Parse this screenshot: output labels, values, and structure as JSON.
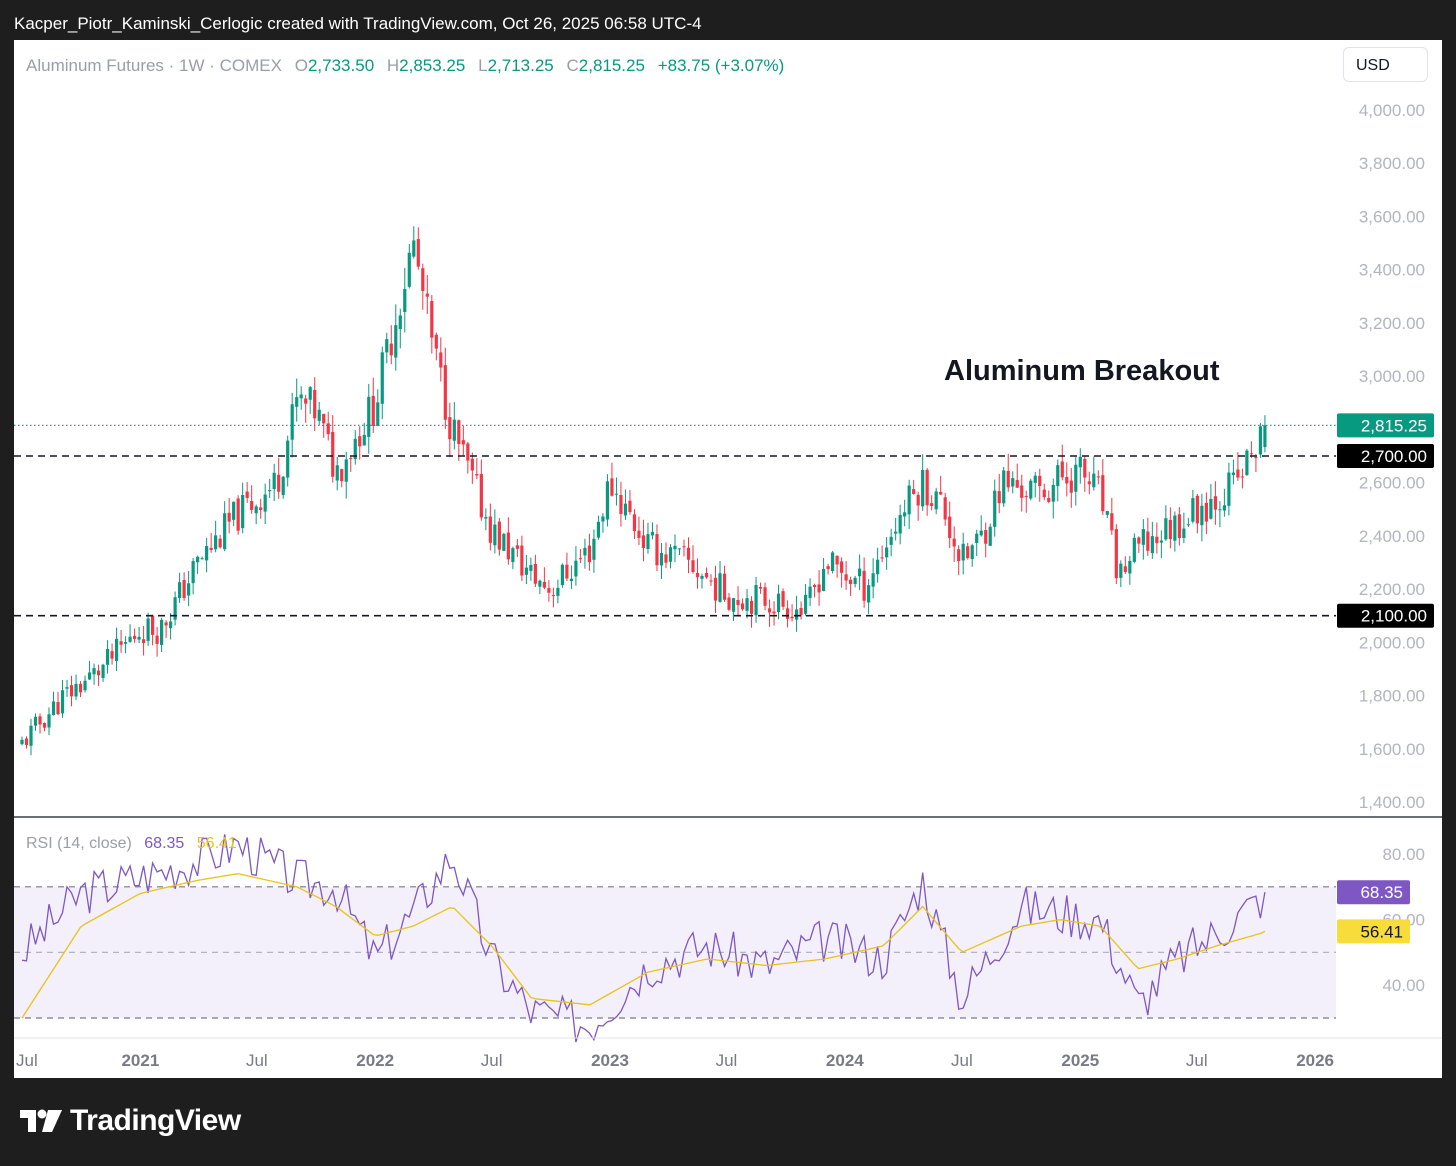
{
  "caption": "Kacper_Piotr_Kaminski_Cerlogic created with TradingView.com, Oct 26, 2025 06:58 UTC-4",
  "header": {
    "symbol": "Aluminum Futures · 1W · COMEX",
    "open_label": "O",
    "open": "2,733.50",
    "high_label": "H",
    "high": "2,853.25",
    "low_label": "L",
    "low": "2,713.25",
    "close_label": "C",
    "close": "2,815.25",
    "change": "+83.75 (+3.07%)"
  },
  "currency": "USD",
  "annotation": "Aluminum Breakout",
  "rsi_legend": {
    "label": "RSI (14, close)",
    "rsi": "68.35",
    "ma": "56.41"
  },
  "brand": "TradingView",
  "colors": {
    "up": "#089981",
    "down": "#f23645",
    "rsi": "#7e57c2",
    "rsi_ma": "#e8c419",
    "rsi_band": "#f3effb"
  },
  "chart_data": [
    {
      "type": "candlestick",
      "title": "Aluminum Futures · 1W · COMEX",
      "y_ticks": [
        1400,
        1600,
        1800,
        2000,
        2200,
        2400,
        2600,
        2800,
        3000,
        3200,
        3400,
        3600,
        3800,
        4000
      ],
      "y_tick_labels": [
        "1,400.00",
        "1,600.00",
        "1,800.00",
        "2,000.00",
        "2,200.00",
        "2,400.00",
        "2,600.00",
        "2,800.00",
        "3,000.00",
        "3,200.00",
        "3,400.00",
        "3,600.00",
        "3,800.00",
        "4,000.00"
      ],
      "ylim": [
        1400,
        4000
      ],
      "x_tick_labels": [
        "Jul",
        "2021",
        "Jul",
        "2022",
        "Jul",
        "2023",
        "Jul",
        "2024",
        "Jul",
        "2025",
        "Jul",
        "2026"
      ],
      "horizontal_lines": [
        {
          "value": 2700,
          "label": "2,700.00",
          "style": "dashed"
        },
        {
          "value": 2100,
          "label": "2,100.00",
          "style": "dashed"
        },
        {
          "value": 2815.25,
          "label": "2,815.25",
          "style": "dotted-current-price"
        }
      ],
      "annotation": "Aluminum Breakout",
      "price_path": {
        "dates": [
          "2020-07",
          "2020-09",
          "2020-11",
          "2021-01",
          "2021-02",
          "2021-04",
          "2021-06",
          "2021-08",
          "2021-09",
          "2021-10",
          "2021-11",
          "2022-01",
          "2022-03",
          "2022-04",
          "2022-05",
          "2022-06",
          "2022-07",
          "2022-09",
          "2022-10",
          "2022-12",
          "2023-01",
          "2023-03",
          "2023-05",
          "2023-07",
          "2023-09",
          "2023-11",
          "2023-12",
          "2024-02",
          "2024-04",
          "2024-05",
          "2024-06",
          "2024-07",
          "2024-08",
          "2024-09",
          "2024-11",
          "2024-12",
          "2025-01",
          "2025-02",
          "2025-03",
          "2025-04",
          "2025-05",
          "2025-07",
          "2025-08",
          "2025-09",
          "2025-10"
        ],
        "close": [
          1620,
          1790,
          1900,
          2050,
          2050,
          2300,
          2480,
          2600,
          2900,
          2870,
          2640,
          2900,
          3500,
          3100,
          2800,
          2600,
          2420,
          2250,
          2200,
          2350,
          2600,
          2360,
          2300,
          2180,
          2160,
          2120,
          2300,
          2210,
          2500,
          2600,
          2510,
          2300,
          2400,
          2600,
          2560,
          2620,
          2640,
          2550,
          2250,
          2350,
          2400,
          2500,
          2550,
          2600,
          2815.25
        ]
      }
    },
    {
      "type": "line",
      "title": "RSI (14, close)",
      "y_ticks": [
        40,
        60,
        80
      ],
      "y_tick_labels": [
        "40.00",
        "60.00",
        "80.00"
      ],
      "band": [
        30,
        70
      ],
      "midline": 50,
      "series": [
        {
          "name": "RSI",
          "last_value": 68.35,
          "dates": [
            "2020-07",
            "2020-10",
            "2021-01",
            "2021-04",
            "2021-06",
            "2021-09",
            "2021-11",
            "2022-01",
            "2022-03",
            "2022-05",
            "2022-07",
            "2022-09",
            "2022-12",
            "2023-03",
            "2023-06",
            "2023-09",
            "2023-12",
            "2024-03",
            "2024-05",
            "2024-07",
            "2024-10",
            "2024-12",
            "2025-02",
            "2025-04",
            "2025-06",
            "2025-08",
            "2025-10"
          ],
          "values": [
            50,
            68,
            73,
            78,
            83,
            72,
            70,
            48,
            62,
            80,
            48,
            32,
            28,
            46,
            52,
            46,
            54,
            48,
            72,
            36,
            64,
            62,
            60,
            34,
            48,
            56,
            68.35
          ]
        },
        {
          "name": "RSI-based MA",
          "last_value": 56.41,
          "dates": [
            "2020-07",
            "2020-10",
            "2021-01",
            "2021-04",
            "2021-06",
            "2021-09",
            "2021-11",
            "2022-01",
            "2022-03",
            "2022-05",
            "2022-07",
            "2022-09",
            "2022-12",
            "2023-03",
            "2023-06",
            "2023-09",
            "2023-12",
            "2024-03",
            "2024-05",
            "2024-07",
            "2024-10",
            "2024-12",
            "2025-02",
            "2025-04",
            "2025-06",
            "2025-08",
            "2025-10"
          ],
          "values": [
            30,
            58,
            68,
            72,
            74,
            70,
            64,
            55,
            58,
            64,
            52,
            36,
            34,
            44,
            48,
            46,
            48,
            52,
            64,
            50,
            58,
            60,
            58,
            45,
            48,
            52,
            56.41
          ]
        }
      ]
    }
  ]
}
